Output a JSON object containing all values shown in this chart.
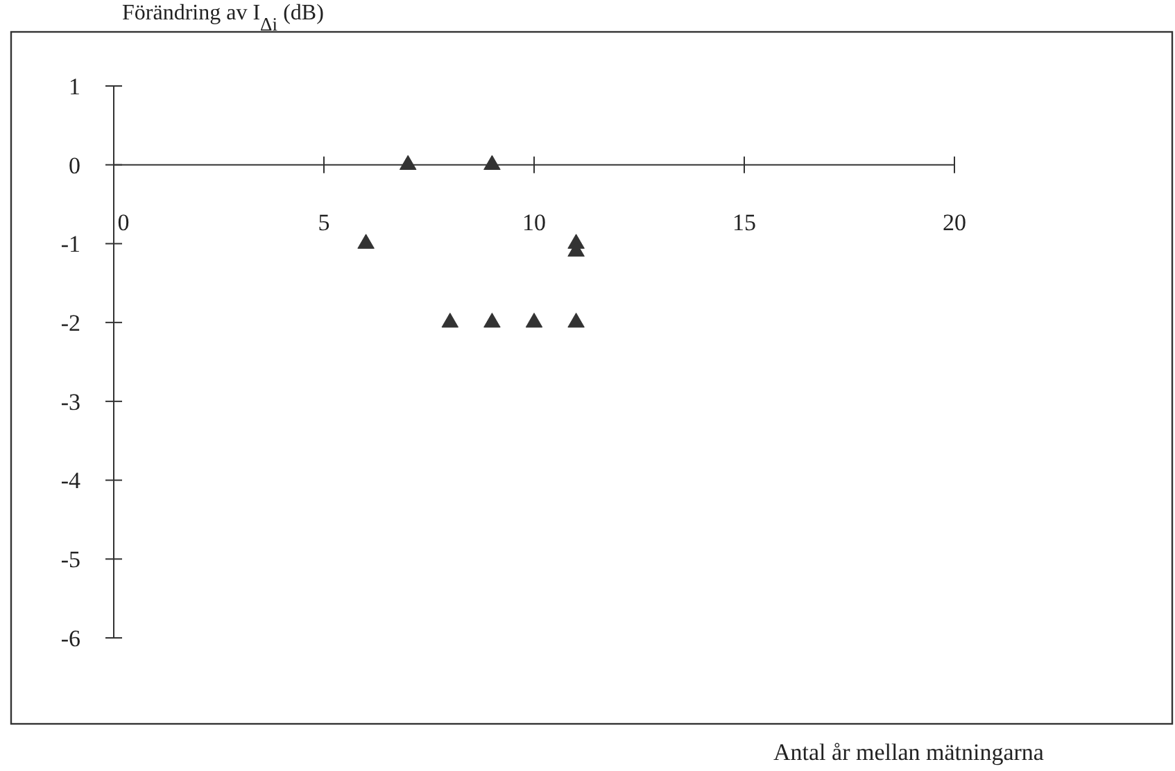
{
  "chart_data": {
    "type": "scatter",
    "ylabel": "Förändring av I$_{Δi}$ (dB)",
    "xlabel": "Antal år mellan mätningarna",
    "x": [
      7,
      9,
      6,
      11,
      11,
      8,
      9,
      10,
      11
    ],
    "series": [
      {
        "color": "#333333",
        "values": [
          0,
          0,
          -1,
          -1,
          -1.1,
          -2,
          -2,
          -2,
          -2
        ]
      }
    ],
    "xlim": [
      0,
      20
    ],
    "xticks": [
      0,
      5,
      10,
      15,
      20
    ],
    "ylim": [
      -6,
      1
    ],
    "yticks": [
      1,
      0,
      -1,
      -2,
      -3,
      -4,
      -5,
      -6
    ],
    "grid": false,
    "marker": "triangle"
  }
}
